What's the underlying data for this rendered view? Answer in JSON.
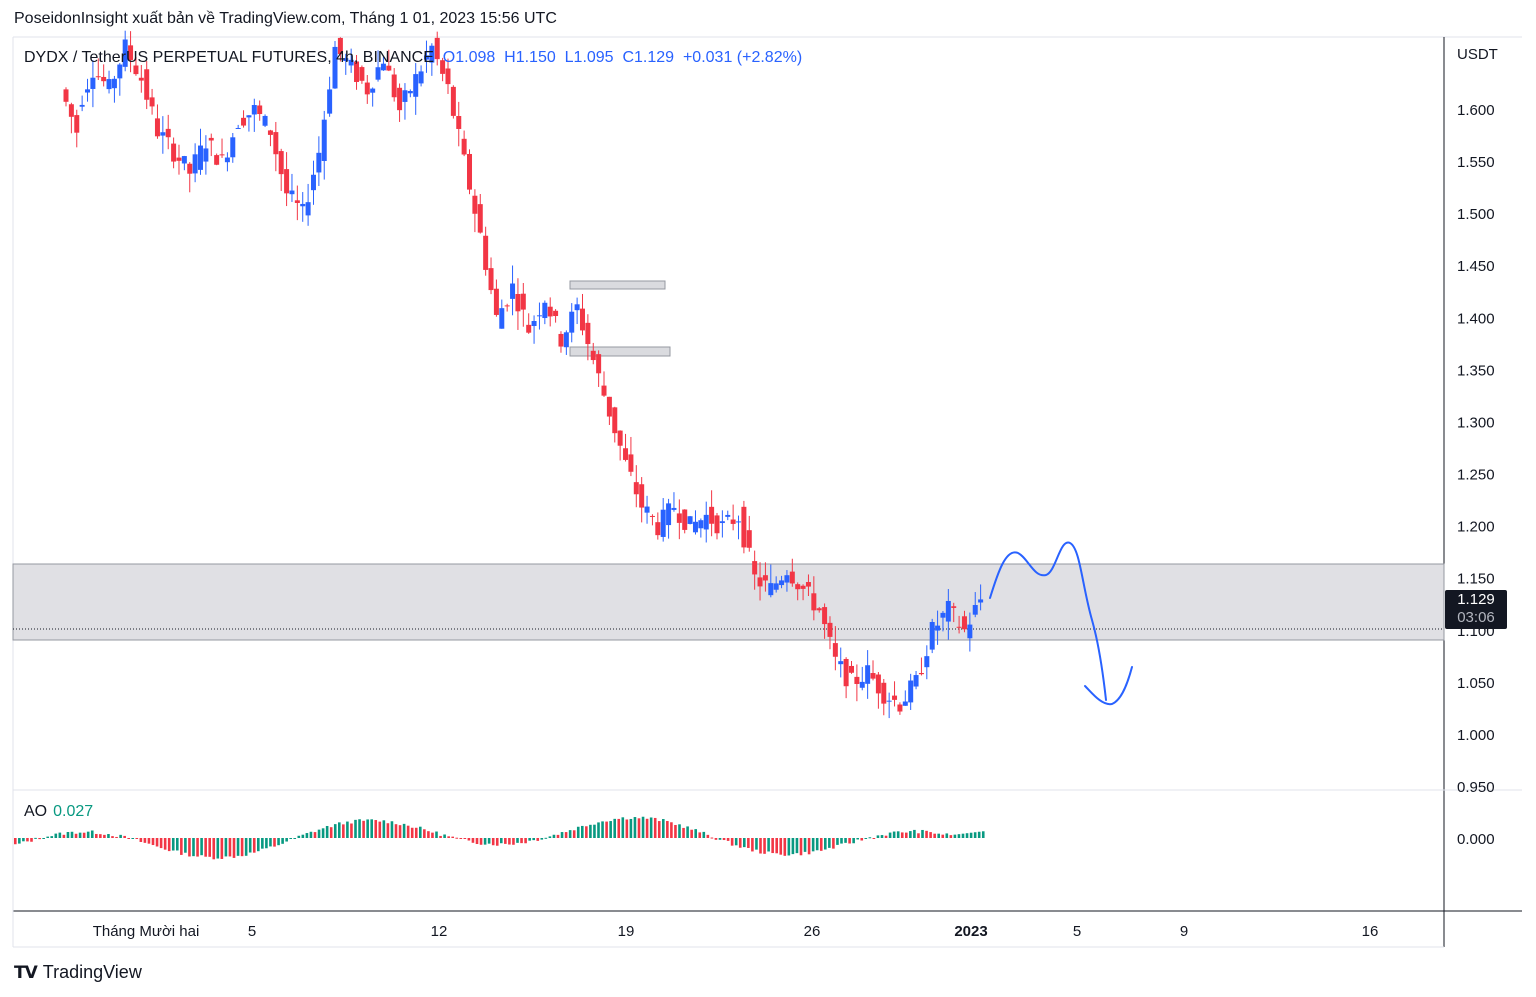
{
  "header": {
    "published_text": "PoseidonInsight xuất bản về TradingView.com, Tháng 1 01, 2023 15:56 UTC"
  },
  "legend": {
    "symbol": "DYDX / TetherUS PERPETUAL FUTURES, 4h, BINANCE",
    "open": "O1.098",
    "high": "H1.150",
    "low": "L1.095",
    "close": "C1.129",
    "change": "+0.031 (+2.82%)"
  },
  "price_scale": {
    "currency": "USDT",
    "ticks": [
      "1.600",
      "1.550",
      "1.500",
      "1.450",
      "1.400",
      "1.350",
      "1.300",
      "1.250",
      "1.200",
      "1.150",
      "1.100",
      "1.050",
      "1.000",
      "0.950"
    ],
    "current_price": "1.129",
    "countdown": "03:06"
  },
  "ao": {
    "label": "AO",
    "value": "0.027",
    "zero_tick": "0.000"
  },
  "time_axis": {
    "labels": [
      {
        "text": "Tháng Mười hai",
        "bold": false
      },
      {
        "text": "5",
        "bold": false
      },
      {
        "text": "12",
        "bold": false
      },
      {
        "text": "19",
        "bold": false
      },
      {
        "text": "26",
        "bold": false
      },
      {
        "text": "2023",
        "bold": true
      },
      {
        "text": "5",
        "bold": false
      },
      {
        "text": "9",
        "bold": false
      },
      {
        "text": "16",
        "bold": false
      }
    ]
  },
  "brand": {
    "name": "TradingView",
    "mark": "TV"
  },
  "colors": {
    "up": "#2962ff",
    "down": "#f23645",
    "ao_up": "#089981",
    "ao_down": "#f23645",
    "zone": "#dadbdf",
    "drawing": "#2962ff"
  },
  "chart_data": {
    "type": "candlestick",
    "title": "DYDX / TetherUS PERPETUAL FUTURES, 4h, BINANCE",
    "ylabel": "USDT",
    "ylim": [
      0.95,
      1.65
    ],
    "x_start": "2022-11-30",
    "x_ticks": [
      "Tháng Mười hai",
      "5",
      "12",
      "19",
      "26",
      "2023",
      "5",
      "9",
      "16"
    ],
    "resistance_zone": [
      1.09,
      1.165
    ],
    "consolidation_box": [
      1.365,
      1.435
    ],
    "current_price": 1.129,
    "ohlc_path": [
      [
        1.62,
        1.58
      ],
      [
        1.6,
        1.64
      ],
      [
        1.64,
        1.62
      ],
      [
        1.62,
        1.66
      ],
      [
        1.66,
        1.63
      ],
      [
        1.63,
        1.58
      ],
      [
        1.58,
        1.56
      ],
      [
        1.56,
        1.54
      ],
      [
        1.54,
        1.57
      ],
      [
        1.57,
        1.55
      ],
      [
        1.55,
        1.59
      ],
      [
        1.59,
        1.6
      ],
      [
        1.6,
        1.58
      ],
      [
        1.58,
        1.52
      ],
      [
        1.52,
        1.5
      ],
      [
        1.5,
        1.56
      ],
      [
        1.56,
        1.66
      ],
      [
        1.66,
        1.64
      ],
      [
        1.64,
        1.62
      ],
      [
        1.62,
        1.65
      ],
      [
        1.65,
        1.6
      ],
      [
        1.6,
        1.63
      ],
      [
        1.63,
        1.66
      ],
      [
        1.66,
        1.62
      ],
      [
        1.62,
        1.55
      ],
      [
        1.55,
        1.48
      ],
      [
        1.48,
        1.4
      ],
      [
        1.4,
        1.43
      ],
      [
        1.43,
        1.39
      ],
      [
        1.39,
        1.42
      ],
      [
        1.42,
        1.38
      ],
      [
        1.38,
        1.41
      ],
      [
        1.41,
        1.36
      ],
      [
        1.36,
        1.31
      ],
      [
        1.31,
        1.26
      ],
      [
        1.26,
        1.22
      ],
      [
        1.22,
        1.2
      ],
      [
        1.2,
        1.22
      ],
      [
        1.22,
        1.2
      ],
      [
        1.2,
        1.21
      ],
      [
        1.21,
        1.2
      ],
      [
        1.2,
        1.21
      ],
      [
        1.21,
        1.15
      ],
      [
        1.15,
        1.14
      ],
      [
        1.14,
        1.16
      ],
      [
        1.16,
        1.14
      ],
      [
        1.14,
        1.12
      ],
      [
        1.12,
        1.07
      ],
      [
        1.07,
        1.05
      ],
      [
        1.05,
        1.06
      ],
      [
        1.06,
        1.04
      ],
      [
        1.04,
        1.03
      ],
      [
        1.03,
        1.05
      ],
      [
        1.05,
        1.1
      ],
      [
        1.1,
        1.12
      ],
      [
        1.12,
        1.1
      ],
      [
        1.1,
        1.13
      ]
    ],
    "ao_series_profile": "oscillating around 0.000, last value 0.027",
    "annotation": "hand-drawn projection: rise to ~1.18, pullback, then drop to ~1.03"
  }
}
